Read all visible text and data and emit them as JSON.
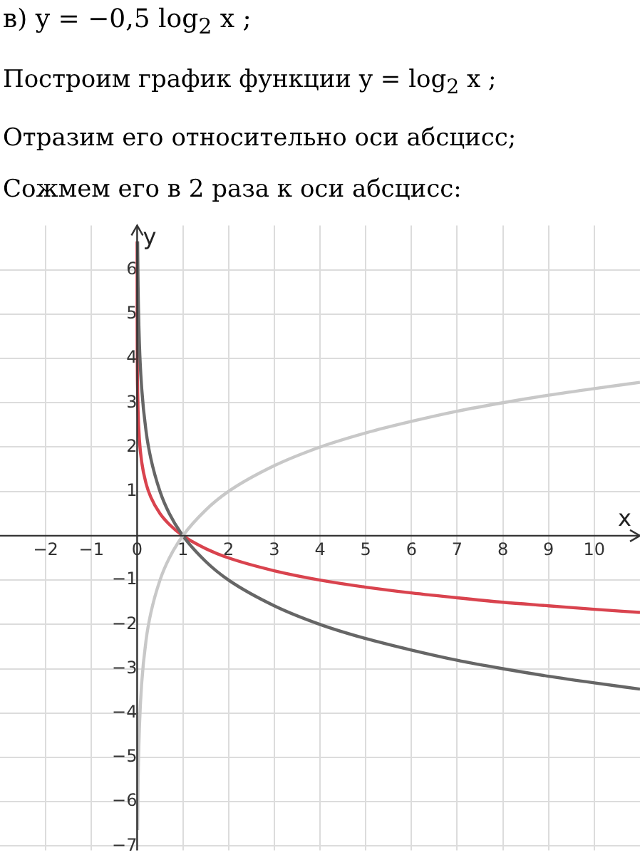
{
  "chart_data": {
    "type": "line",
    "title": "в) y = −0,5 log$_{2}$ x ;",
    "annotations": [
      "Построим график функции y = log$_{2}$ x ;",
      "Отразим его относительно оси абсцисс;",
      "Сожмем его в 2 раза к оси абсцисс:"
    ],
    "xlabel": "x",
    "ylabel": "y",
    "xlim": [
      -3,
      11
    ],
    "ylim": [
      -7.1,
      7
    ],
    "xticks": [
      -2,
      -1,
      0,
      1,
      2,
      3,
      4,
      5,
      6,
      7,
      8,
      9,
      10
    ],
    "yticks": [
      -7,
      -6,
      -5,
      -4,
      -3,
      -2,
      -1,
      1,
      2,
      3,
      4,
      5,
      6
    ],
    "grid": true,
    "legend": false,
    "marker": "none",
    "line_style": "solid",
    "series": [
      {
        "color": "#c8c8c8",
        "x": [
          0.01,
          0.02,
          0.05,
          0.1,
          0.2,
          0.3,
          0.5,
          0.7,
          1,
          1.5,
          2,
          3,
          4,
          5,
          6,
          7,
          8,
          9,
          10,
          11
        ],
        "values": [
          -6.64,
          -5.64,
          -4.32,
          -3.32,
          -2.32,
          -1.74,
          -1,
          -0.51,
          0,
          0.58,
          1,
          1.58,
          2,
          2.32,
          2.58,
          2.81,
          3,
          3.17,
          3.32,
          3.46
        ]
      },
      {
        "color": "#666666",
        "x": [
          0.01,
          0.02,
          0.05,
          0.1,
          0.2,
          0.3,
          0.5,
          0.7,
          1,
          1.5,
          2,
          3,
          4,
          5,
          6,
          7,
          8,
          9,
          10,
          11
        ],
        "values": [
          6.64,
          5.64,
          4.32,
          3.32,
          2.32,
          1.74,
          1,
          0.51,
          0,
          -0.58,
          -1,
          -1.58,
          -2,
          -2.32,
          -2.58,
          -2.81,
          -3,
          -3.17,
          -3.32,
          -3.46
        ]
      },
      {
        "color": "#d9434e",
        "x": [
          0.0001,
          0.001,
          0.01,
          0.02,
          0.05,
          0.1,
          0.2,
          0.3,
          0.5,
          0.7,
          1,
          1.5,
          2,
          3,
          4,
          5,
          6,
          7,
          8,
          9,
          10,
          11
        ],
        "values": [
          6.64,
          4.98,
          3.32,
          2.82,
          2.16,
          1.66,
          1.16,
          0.87,
          0.5,
          0.26,
          0,
          -0.29,
          -0.5,
          -0.79,
          -1,
          -1.16,
          -1.29,
          -1.4,
          -1.5,
          -1.58,
          -1.66,
          -1.73
        ]
      }
    ]
  }
}
